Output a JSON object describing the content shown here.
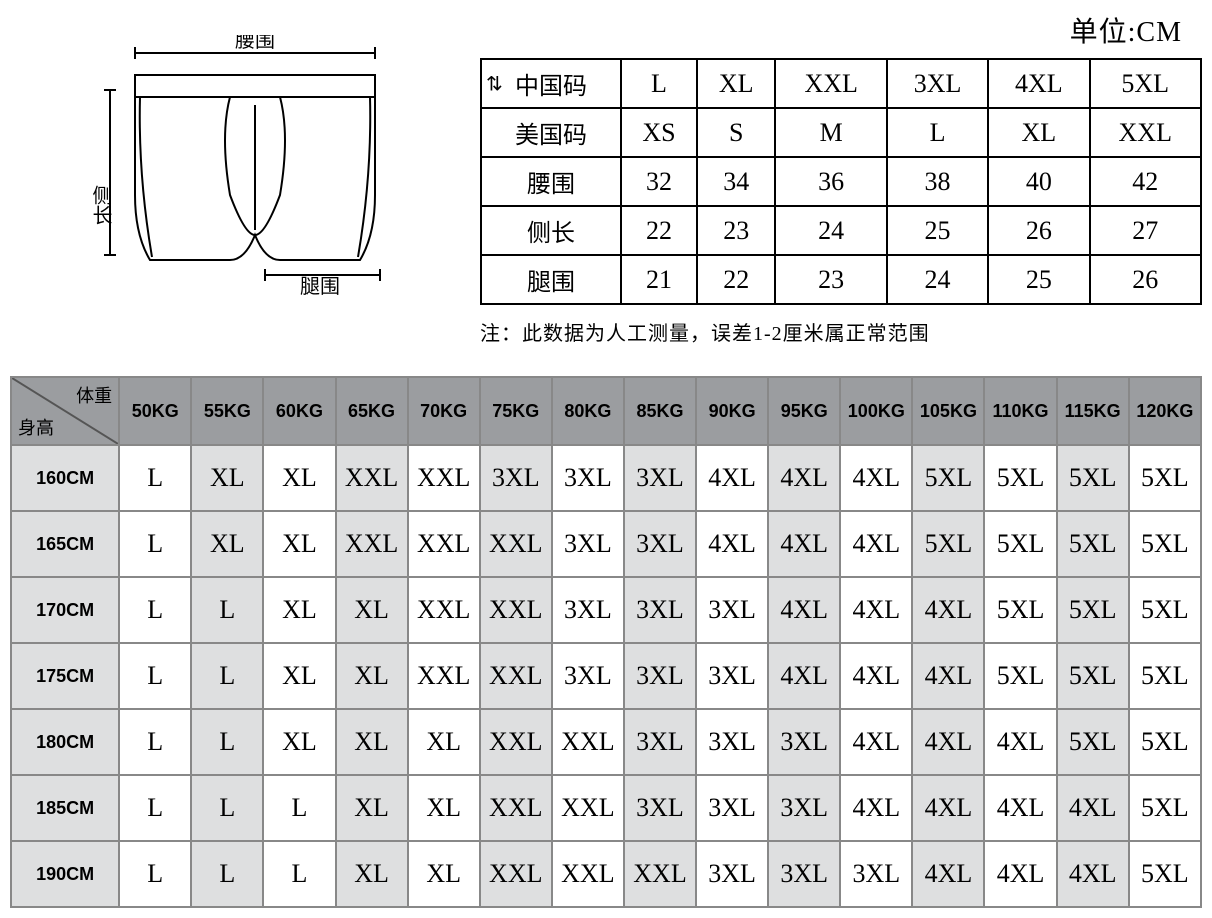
{
  "unit_label": "单位:CM",
  "diagram": {
    "waist_label": "腰围",
    "side_label": "侧长",
    "leg_label": "腿围",
    "stroke": "#000000"
  },
  "size_table": {
    "row_labels": [
      "中国码",
      "美国码",
      "腰围",
      "侧长",
      "腿围"
    ],
    "rows": [
      [
        "L",
        "XL",
        "XXL",
        "3XL",
        "4XL",
        "5XL"
      ],
      [
        "XS",
        "S",
        "M",
        "L",
        "XL",
        "XXL"
      ],
      [
        "32",
        "34",
        "36",
        "38",
        "40",
        "42"
      ],
      [
        "22",
        "23",
        "24",
        "25",
        "26",
        "27"
      ],
      [
        "21",
        "22",
        "23",
        "24",
        "25",
        "26"
      ]
    ]
  },
  "note": "注：此数据为人工测量，误差1-2厘米属正常范围",
  "matrix": {
    "corner_weight_label": "体重",
    "corner_height_label": "身高",
    "weights": [
      "50KG",
      "55KG",
      "60KG",
      "65KG",
      "70KG",
      "75KG",
      "80KG",
      "85KG",
      "90KG",
      "95KG",
      "100KG",
      "105KG",
      "110KG",
      "115KG",
      "120KG"
    ],
    "heights": [
      "160CM",
      "165CM",
      "170CM",
      "175CM",
      "180CM",
      "185CM",
      "190CM"
    ],
    "cells": [
      [
        "L",
        "XL",
        "XL",
        "XXL",
        "XXL",
        "3XL",
        "3XL",
        "3XL",
        "4XL",
        "4XL",
        "4XL",
        "5XL",
        "5XL",
        "5XL",
        "5XL"
      ],
      [
        "L",
        "XL",
        "XL",
        "XXL",
        "XXL",
        "XXL",
        "3XL",
        "3XL",
        "4XL",
        "4XL",
        "4XL",
        "5XL",
        "5XL",
        "5XL",
        "5XL"
      ],
      [
        "L",
        "L",
        "XL",
        "XL",
        "XXL",
        "XXL",
        "3XL",
        "3XL",
        "3XL",
        "4XL",
        "4XL",
        "4XL",
        "5XL",
        "5XL",
        "5XL"
      ],
      [
        "L",
        "L",
        "XL",
        "XL",
        "XXL",
        "XXL",
        "3XL",
        "3XL",
        "3XL",
        "4XL",
        "4XL",
        "4XL",
        "5XL",
        "5XL",
        "5XL"
      ],
      [
        "L",
        "L",
        "XL",
        "XL",
        "XL",
        "XXL",
        "XXL",
        "3XL",
        "3XL",
        "3XL",
        "4XL",
        "4XL",
        "4XL",
        "5XL",
        "5XL"
      ],
      [
        "L",
        "L",
        "L",
        "XL",
        "XL",
        "XXL",
        "XXL",
        "3XL",
        "3XL",
        "3XL",
        "4XL",
        "4XL",
        "4XL",
        "4XL",
        "5XL"
      ],
      [
        "L",
        "L",
        "L",
        "XL",
        "XL",
        "XXL",
        "XXL",
        "XXL",
        "3XL",
        "3XL",
        "3XL",
        "4XL",
        "4XL",
        "4XL",
        "5XL"
      ]
    ],
    "header_bg": "#9b9da0",
    "row_header_bg": "#dedfe0",
    "cell_light_bg": "#ffffff",
    "cell_dark_bg": "#dedfe0",
    "border_color": "#888888"
  }
}
